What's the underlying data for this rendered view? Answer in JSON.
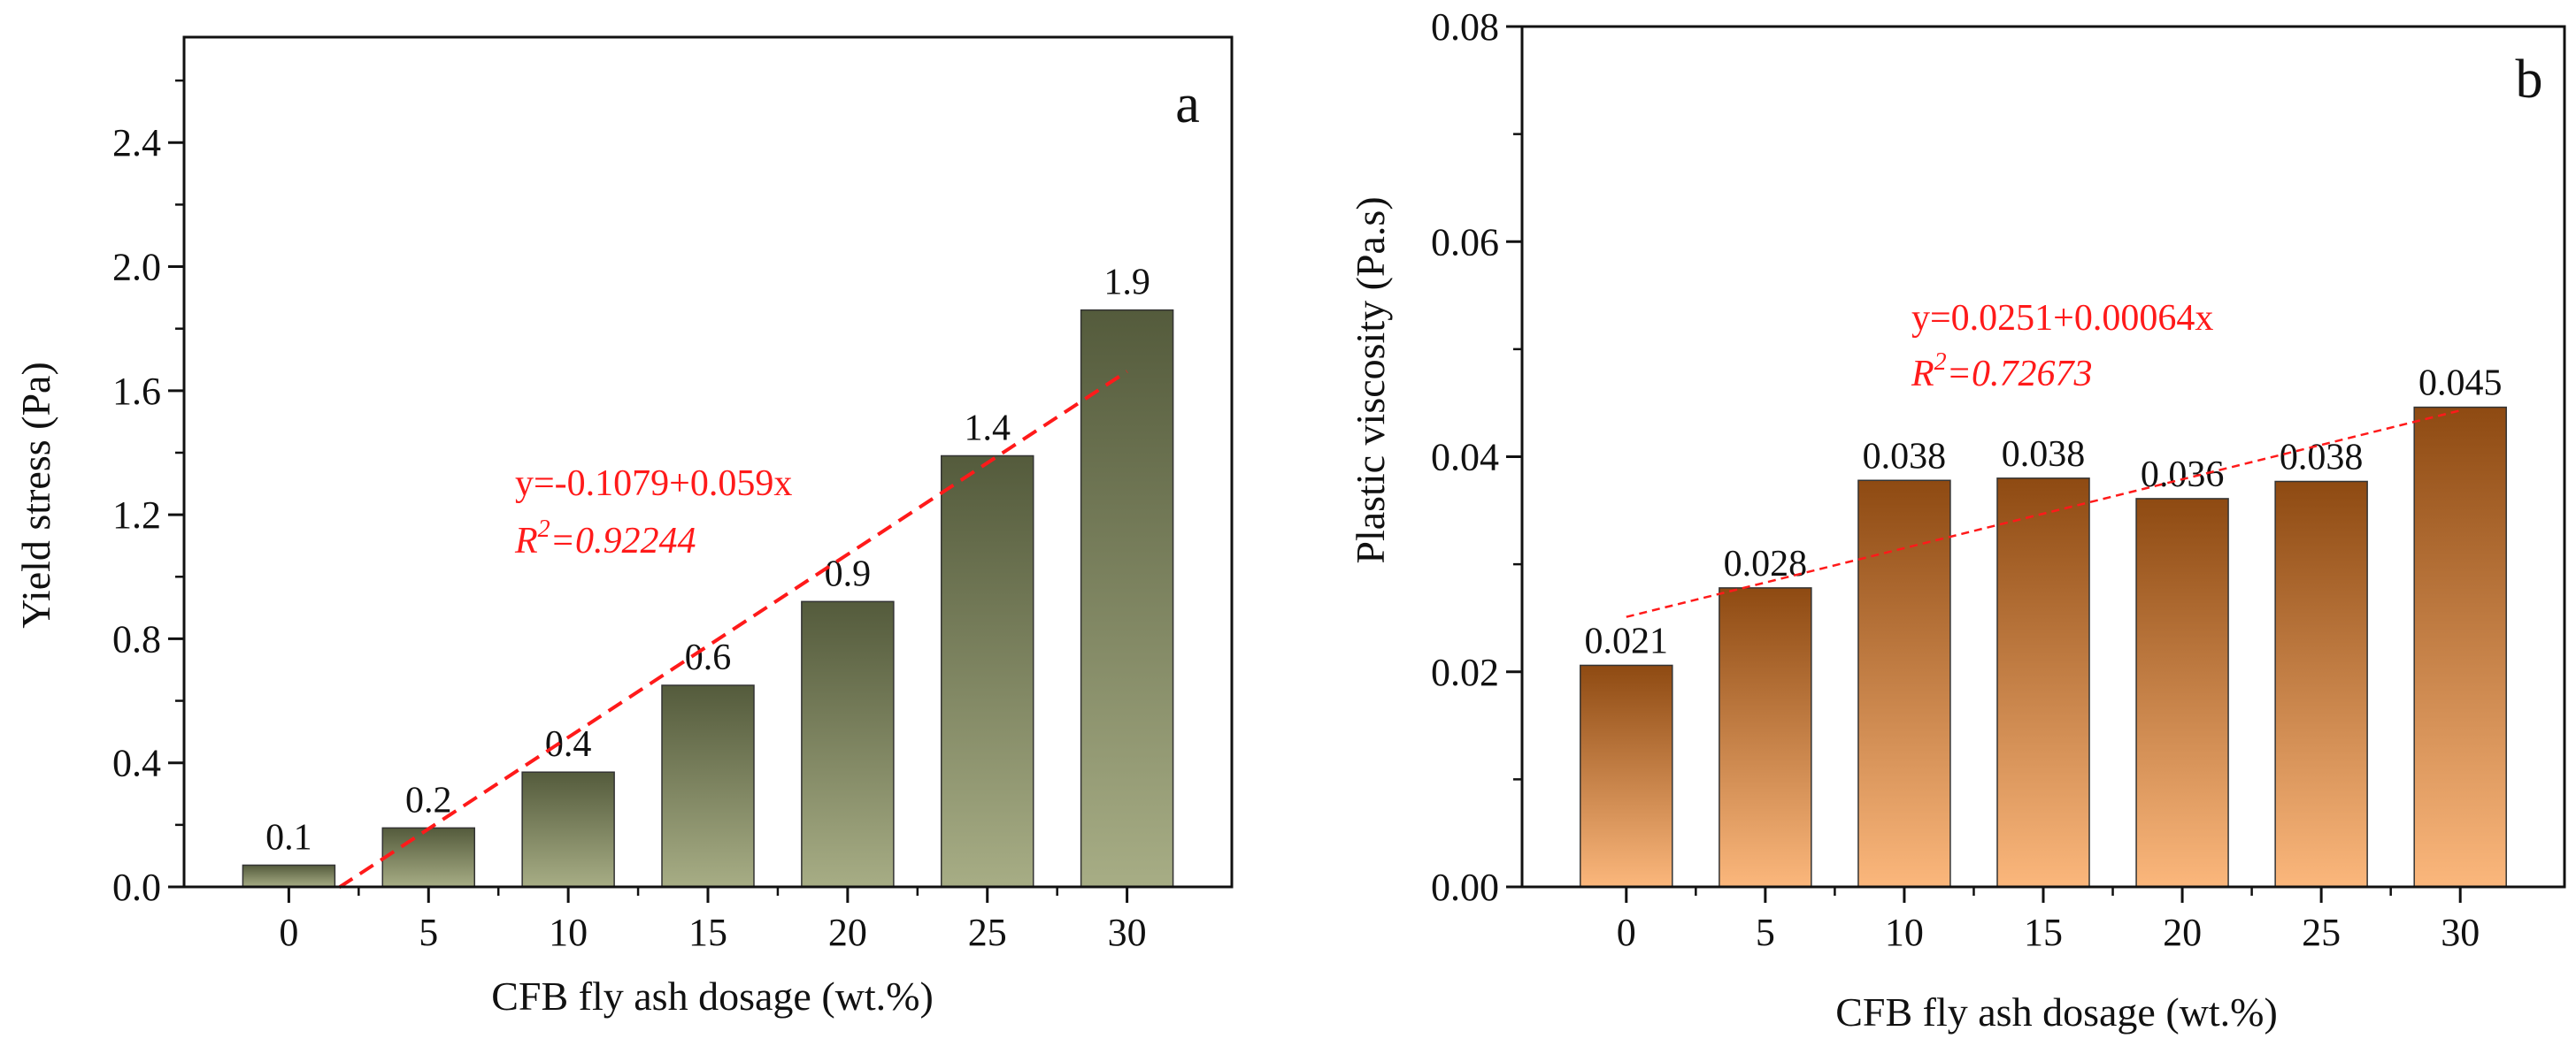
{
  "chart_data": [
    {
      "type": "bar",
      "panel": "a",
      "title": "",
      "xlabel": "CFB fly ash dosage (wt.%)",
      "ylabel": "Yield stress (Pa)",
      "categories": [
        "0",
        "5",
        "10",
        "15",
        "20",
        "25",
        "30"
      ],
      "x": [
        0,
        5,
        10,
        15,
        20,
        25,
        30
      ],
      "values": [
        0.07,
        0.19,
        0.37,
        0.65,
        0.92,
        1.39,
        1.86
      ],
      "data_labels": [
        "0.1",
        "0.2",
        "0.4",
        "0.6",
        "0.9",
        "1.4",
        "1.9"
      ],
      "ylim": [
        0,
        2.74
      ],
      "yticks": [
        0.0,
        0.4,
        0.8,
        1.2,
        1.6,
        2.0,
        2.4
      ],
      "ytick_labels": [
        "0.0",
        "0.4",
        "0.8",
        "1.2",
        "1.6",
        "2.0",
        "2.4"
      ],
      "fit": {
        "equation": "y=-0.1079+0.059x",
        "r2_label": "R",
        "r2_sup": "2",
        "r2_value": "=0.92244",
        "intercept": -0.1079,
        "slope": 0.059,
        "x_range": [
          1.8,
          30
        ]
      },
      "colors": {
        "bar_top": "#545b3c",
        "bar_bottom": "#a7ad85",
        "fit": "#ff1a1a"
      },
      "legend": "none",
      "grid": false
    },
    {
      "type": "bar",
      "panel": "b",
      "title": "",
      "xlabel": "CFB fly ash dosage (wt.%)",
      "ylabel": "Plastic viscosity (Pa.s)",
      "categories": [
        "0",
        "5",
        "10",
        "15",
        "20",
        "25",
        "30"
      ],
      "x": [
        0,
        5,
        10,
        15,
        20,
        25,
        30
      ],
      "values": [
        0.0206,
        0.0278,
        0.0378,
        0.038,
        0.0361,
        0.0377,
        0.0446
      ],
      "data_labels": [
        "0.021",
        "0.028",
        "0.038",
        "0.038",
        "0.036",
        "0.038",
        "0.045"
      ],
      "ylim": [
        0,
        0.08
      ],
      "yticks": [
        0.0,
        0.02,
        0.04,
        0.06,
        0.08
      ],
      "ytick_labels": [
        "0.00",
        "0.02",
        "0.04",
        "0.06",
        "0.08"
      ],
      "fit": {
        "equation": "y=0.0251+0.00064x",
        "r2_label": "R",
        "r2_sup": "2",
        "r2_value": "=0.72673",
        "intercept": 0.0251,
        "slope": 0.00064,
        "x_range": [
          0,
          30
        ]
      },
      "colors": {
        "bar_top": "#8e4a12",
        "bar_bottom": "#fbb77c",
        "fit": "#ff1a1a"
      },
      "legend": "none",
      "grid": false
    }
  ]
}
